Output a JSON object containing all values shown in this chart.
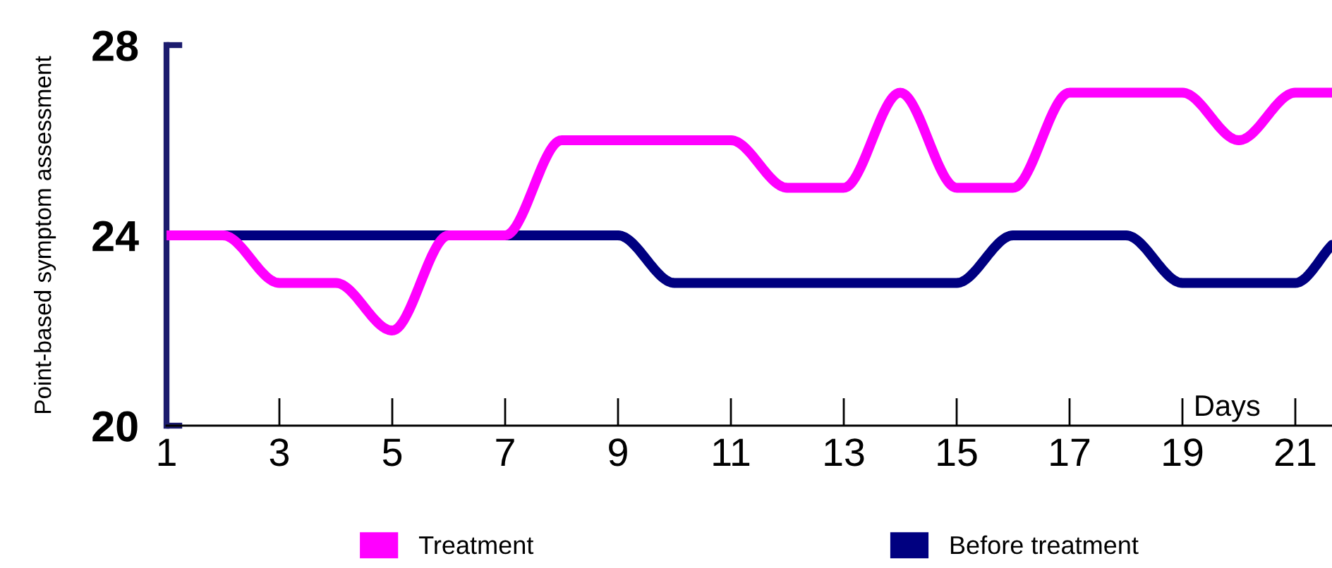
{
  "chart_data": {
    "type": "line",
    "ylabel": "Point-based symptom assessment",
    "xlabel": "Days",
    "xlim": [
      1,
      21.65
    ],
    "xticks": [
      1,
      3,
      5,
      7,
      9,
      11,
      13,
      15,
      17,
      19,
      21
    ],
    "ylim": [
      20,
      28
    ],
    "yticks": [
      20,
      24,
      28
    ],
    "grid": false,
    "legend": "bottom",
    "marker": "none",
    "line_style": "solid",
    "series": [
      {
        "name": "Treatment",
        "color": "#ff00ff",
        "x": [
          1,
          2,
          3,
          4,
          5,
          6,
          7,
          8,
          9,
          10,
          11,
          12,
          13,
          14,
          15,
          16,
          17,
          18,
          19,
          20,
          21,
          21.65
        ],
        "values": [
          24,
          24,
          23,
          23,
          22,
          24,
          24,
          26,
          26,
          26,
          26,
          25,
          25,
          27,
          25,
          25,
          27,
          27,
          27,
          26,
          27,
          27
        ]
      },
      {
        "name": "Before treatment",
        "color": "#000080",
        "x": [
          1,
          2,
          3,
          4,
          5,
          6,
          7,
          8,
          9,
          10,
          11,
          12,
          13,
          14,
          15,
          16,
          17,
          18,
          19,
          20,
          21,
          21.65
        ],
        "values": [
          24,
          24,
          24,
          24,
          24,
          24,
          24,
          24,
          24,
          23,
          23,
          23,
          23,
          23,
          23,
          24,
          24,
          24,
          23,
          23,
          23,
          23.8
        ]
      }
    ]
  }
}
